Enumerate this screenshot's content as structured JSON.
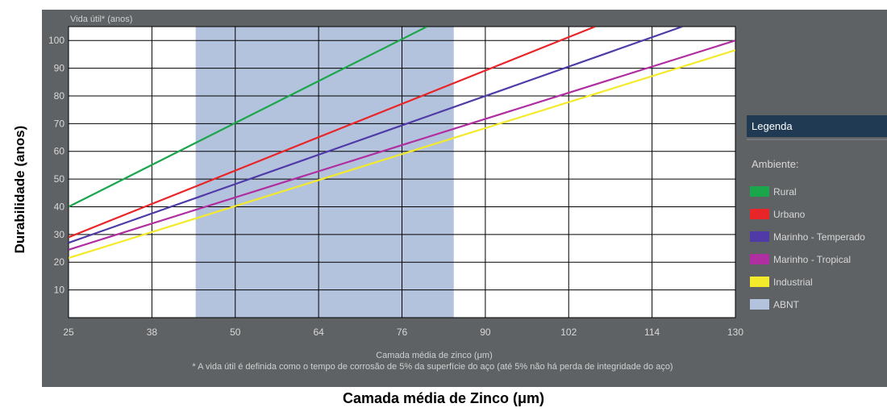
{
  "outer": {
    "ylabel": "Durabilidade (anos)",
    "xlabel": "Camada média de Zinco (μm)"
  },
  "chart_data": {
    "type": "line",
    "ylabel_top": "Vida útil* (anos)",
    "xlabel": "Camada média de zinco (μm)",
    "footnote": "* A vida útil é definida como o tempo de corrosão de 5% da superfície do aço (até 5% não há perda de integridade do aço)",
    "x_ticks": [
      25,
      38,
      50,
      64,
      76,
      90,
      102,
      114,
      130
    ],
    "y_ticks": [
      10,
      20,
      30,
      40,
      50,
      60,
      70,
      80,
      90,
      100
    ],
    "xlim": [
      25,
      130
    ],
    "ylim": [
      0,
      105
    ],
    "abnt_band": [
      44.3,
      84.7
    ],
    "grid": true,
    "legend": {
      "title": "Legenda",
      "subtitle": "Ambiente:",
      "position": "right"
    },
    "series": [
      {
        "name": "Rural",
        "color": "#1aa64a",
        "x": [
          25,
          80.2
        ],
        "y": [
          40,
          105
        ]
      },
      {
        "name": "Urbano",
        "color": "#e8262a",
        "x": [
          25,
          105.8
        ],
        "y": [
          29,
          105
        ]
      },
      {
        "name": "Marinho - Temperado",
        "color": "#4f3aa8",
        "x": [
          25,
          119.8
        ],
        "y": [
          27,
          105
        ]
      },
      {
        "name": "Marinho - Tropical",
        "color": "#b02fa0",
        "x": [
          25,
          130
        ],
        "y": [
          24.5,
          100
        ]
      },
      {
        "name": "Industrial",
        "color": "#f3ea2b",
        "x": [
          25,
          130
        ],
        "y": [
          21.5,
          96.5
        ]
      }
    ],
    "band_legend": {
      "name": "ABNT",
      "color": "#b4c3dd"
    }
  }
}
